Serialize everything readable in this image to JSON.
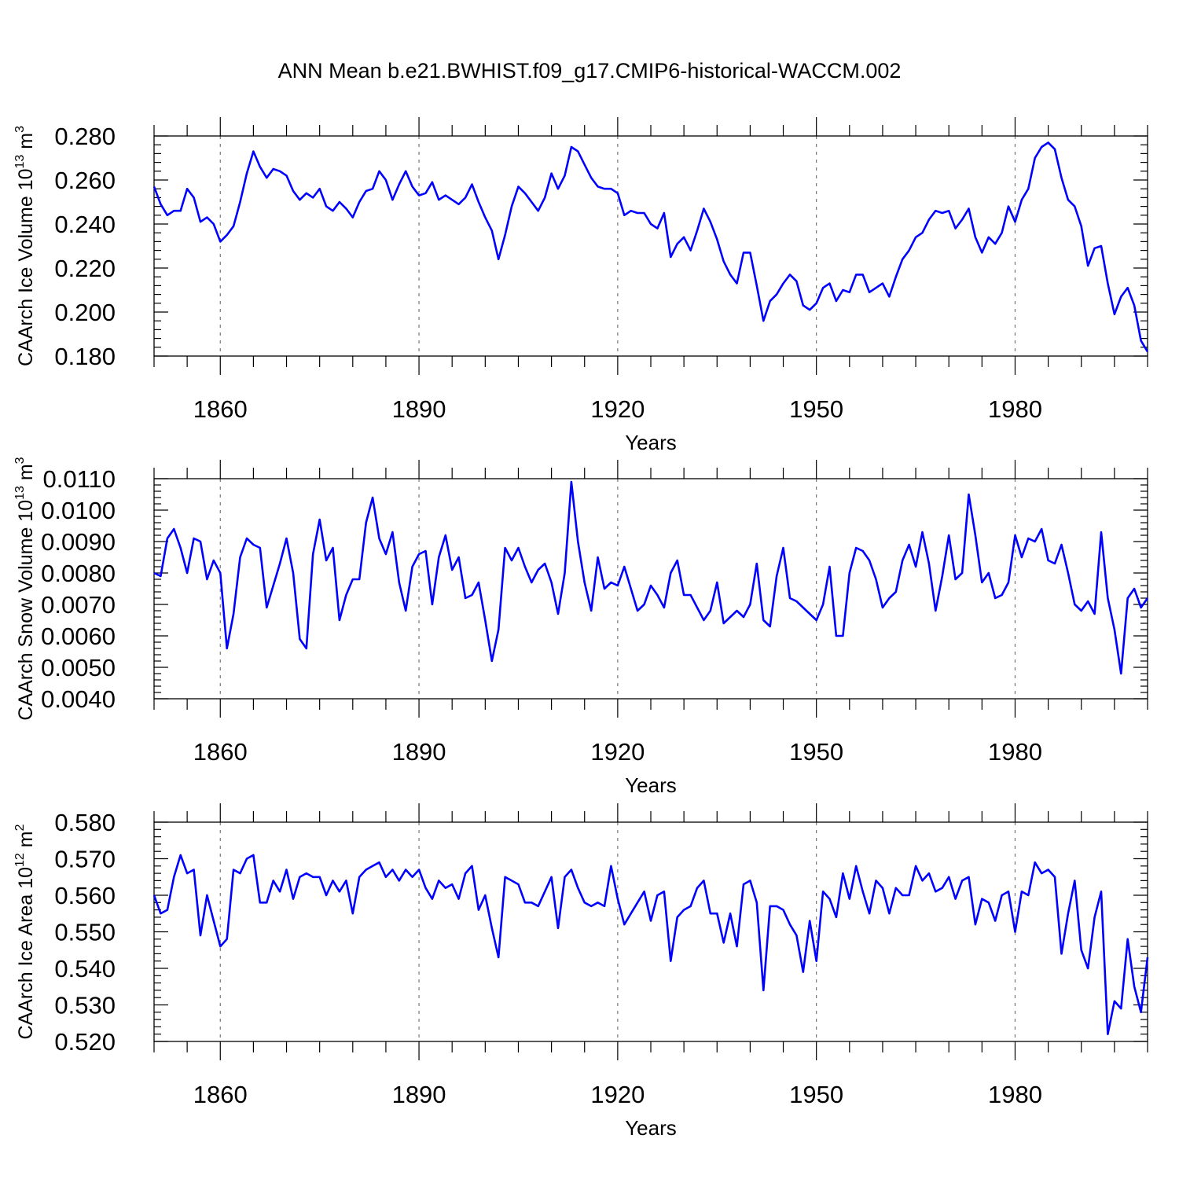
{
  "title": "ANN Mean b.e21.BWHIST.f09_g17.CMIP6-historical-WACCM.002",
  "colors": {
    "series": "#0000ff",
    "axis": "#000000",
    "grid": "#777777"
  },
  "chart_data": [
    {
      "type": "line",
      "id": "ice-volume",
      "ylabel": "CAArch Ice Volume 10",
      "ylabel_exp": "13",
      "ylabel_unit": "m",
      "ylabel_unit_exp": "3",
      "xlabel": "Years",
      "xlim": [
        1850,
        2000
      ],
      "ylim": [
        0.18,
        0.28
      ],
      "xticks": [
        1860,
        1890,
        1920,
        1950,
        1980
      ],
      "xtick_labels": [
        "1860",
        "1890",
        "1920",
        "1950",
        "1980"
      ],
      "yticks": [
        0.18,
        0.2,
        0.22,
        0.24,
        0.26,
        0.28
      ],
      "ytick_labels": [
        "0.180",
        "0.200",
        "0.220",
        "0.240",
        "0.260",
        "0.280"
      ],
      "x_start": 1850,
      "values": [
        0.257,
        0.249,
        0.244,
        0.246,
        0.246,
        0.256,
        0.252,
        0.241,
        0.243,
        0.24,
        0.232,
        0.235,
        0.239,
        0.25,
        0.263,
        0.273,
        0.266,
        0.261,
        0.265,
        0.264,
        0.262,
        0.255,
        0.251,
        0.254,
        0.252,
        0.256,
        0.248,
        0.246,
        0.25,
        0.247,
        0.243,
        0.25,
        0.255,
        0.256,
        0.264,
        0.26,
        0.251,
        0.258,
        0.264,
        0.257,
        0.253,
        0.254,
        0.259,
        0.251,
        0.253,
        0.251,
        0.249,
        0.252,
        0.258,
        0.25,
        0.243,
        0.237,
        0.224,
        0.235,
        0.248,
        0.257,
        0.254,
        0.25,
        0.246,
        0.252,
        0.263,
        0.256,
        0.262,
        0.275,
        0.273,
        0.267,
        0.261,
        0.257,
        0.256,
        0.256,
        0.254,
        0.244,
        0.246,
        0.245,
        0.245,
        0.24,
        0.238,
        0.245,
        0.225,
        0.231,
        0.234,
        0.228,
        0.237,
        0.247,
        0.241,
        0.233,
        0.223,
        0.217,
        0.213,
        0.227,
        0.227,
        0.212,
        0.196,
        0.205,
        0.208,
        0.213,
        0.217,
        0.214,
        0.203,
        0.201,
        0.204,
        0.211,
        0.213,
        0.205,
        0.21,
        0.209,
        0.217,
        0.217,
        0.209,
        0.211,
        0.213,
        0.207,
        0.216,
        0.224,
        0.228,
        0.234,
        0.236,
        0.242,
        0.246,
        0.245,
        0.246,
        0.238,
        0.242,
        0.247,
        0.234,
        0.227,
        0.234,
        0.231,
        0.236,
        0.248,
        0.241,
        0.251,
        0.256,
        0.27,
        0.275,
        0.277,
        0.274,
        0.261,
        0.251,
        0.248,
        0.239,
        0.221,
        0.229,
        0.23,
        0.213,
        0.199,
        0.207,
        0.211,
        0.203,
        0.187,
        0.182
      ]
    },
    {
      "type": "line",
      "id": "snow-volume",
      "ylabel": "CAArch Snow Volume 10",
      "ylabel_exp": "13",
      "ylabel_unit": "m",
      "ylabel_unit_exp": "3",
      "xlabel": "Years",
      "xlim": [
        1850,
        2000
      ],
      "ylim": [
        0.004,
        0.011
      ],
      "xticks": [
        1860,
        1890,
        1920,
        1950,
        1980
      ],
      "xtick_labels": [
        "1860",
        "1890",
        "1920",
        "1950",
        "1980"
      ],
      "yticks": [
        0.004,
        0.005,
        0.006,
        0.007,
        0.008,
        0.009,
        0.01,
        0.011
      ],
      "ytick_labels": [
        "0.0040",
        "0.0050",
        "0.0060",
        "0.0070",
        "0.0080",
        "0.0090",
        "0.0100",
        "0.0110"
      ],
      "x_start": 1850,
      "values": [
        0.008,
        0.0079,
        0.0091,
        0.0094,
        0.0088,
        0.008,
        0.0091,
        0.009,
        0.0078,
        0.0084,
        0.008,
        0.0056,
        0.0067,
        0.0085,
        0.0091,
        0.0089,
        0.0088,
        0.0069,
        0.0076,
        0.0083,
        0.0091,
        0.008,
        0.0059,
        0.0056,
        0.0086,
        0.0097,
        0.0084,
        0.0088,
        0.0065,
        0.0073,
        0.0078,
        0.0078,
        0.0096,
        0.0104,
        0.0091,
        0.0086,
        0.0093,
        0.0077,
        0.0068,
        0.0082,
        0.0086,
        0.0087,
        0.007,
        0.0085,
        0.0092,
        0.0081,
        0.0085,
        0.0072,
        0.0073,
        0.0077,
        0.0065,
        0.0052,
        0.0062,
        0.0088,
        0.0084,
        0.0088,
        0.0082,
        0.0077,
        0.0081,
        0.0083,
        0.0077,
        0.0067,
        0.008,
        0.0109,
        0.009,
        0.0077,
        0.0068,
        0.0085,
        0.0075,
        0.0077,
        0.0076,
        0.0082,
        0.0075,
        0.0068,
        0.007,
        0.0076,
        0.0073,
        0.0069,
        0.008,
        0.0084,
        0.0073,
        0.0073,
        0.0069,
        0.0065,
        0.0068,
        0.0077,
        0.0064,
        0.0066,
        0.0068,
        0.0066,
        0.007,
        0.0083,
        0.0065,
        0.0063,
        0.0079,
        0.0088,
        0.0072,
        0.0071,
        0.0069,
        0.0067,
        0.0065,
        0.007,
        0.0082,
        0.006,
        0.006,
        0.008,
        0.0088,
        0.0087,
        0.0084,
        0.0078,
        0.0069,
        0.0072,
        0.0074,
        0.0084,
        0.0089,
        0.0082,
        0.0093,
        0.0083,
        0.0068,
        0.0079,
        0.0092,
        0.0078,
        0.008,
        0.0105,
        0.0092,
        0.0077,
        0.008,
        0.0072,
        0.0073,
        0.0077,
        0.0092,
        0.0085,
        0.0091,
        0.009,
        0.0094,
        0.0084,
        0.0083,
        0.0089,
        0.008,
        0.007,
        0.0068,
        0.0071,
        0.0067,
        0.0093,
        0.0072,
        0.0062,
        0.0048,
        0.0072,
        0.0075,
        0.0069,
        0.0072
      ]
    },
    {
      "type": "line",
      "id": "ice-area",
      "ylabel": "CAArch Ice Area 10",
      "ylabel_exp": "12",
      "ylabel_unit": "m",
      "ylabel_unit_exp": "2",
      "xlabel": "Years",
      "xlim": [
        1850,
        2000
      ],
      "ylim": [
        0.52,
        0.58
      ],
      "xticks": [
        1860,
        1890,
        1920,
        1950,
        1980
      ],
      "xtick_labels": [
        "1860",
        "1890",
        "1920",
        "1950",
        "1980"
      ],
      "yticks": [
        0.52,
        0.53,
        0.54,
        0.55,
        0.56,
        0.57,
        0.58
      ],
      "ytick_labels": [
        "0.520",
        "0.530",
        "0.540",
        "0.550",
        "0.560",
        "0.570",
        "0.580"
      ],
      "x_start": 1850,
      "values": [
        0.56,
        0.555,
        0.556,
        0.565,
        0.571,
        0.566,
        0.567,
        0.549,
        0.56,
        0.553,
        0.546,
        0.548,
        0.567,
        0.566,
        0.57,
        0.571,
        0.558,
        0.558,
        0.564,
        0.561,
        0.567,
        0.559,
        0.565,
        0.566,
        0.565,
        0.565,
        0.56,
        0.564,
        0.561,
        0.564,
        0.555,
        0.565,
        0.567,
        0.568,
        0.569,
        0.565,
        0.567,
        0.564,
        0.567,
        0.565,
        0.567,
        0.562,
        0.559,
        0.564,
        0.562,
        0.563,
        0.559,
        0.566,
        0.568,
        0.556,
        0.56,
        0.551,
        0.543,
        0.565,
        0.564,
        0.563,
        0.558,
        0.558,
        0.557,
        0.561,
        0.565,
        0.551,
        0.565,
        0.567,
        0.562,
        0.558,
        0.557,
        0.558,
        0.557,
        0.568,
        0.559,
        0.552,
        0.555,
        0.558,
        0.561,
        0.553,
        0.56,
        0.561,
        0.542,
        0.554,
        0.556,
        0.557,
        0.562,
        0.564,
        0.555,
        0.555,
        0.547,
        0.555,
        0.546,
        0.563,
        0.564,
        0.558,
        0.534,
        0.557,
        0.557,
        0.556,
        0.552,
        0.549,
        0.539,
        0.553,
        0.542,
        0.561,
        0.559,
        0.554,
        0.566,
        0.559,
        0.568,
        0.561,
        0.555,
        0.564,
        0.562,
        0.555,
        0.562,
        0.56,
        0.56,
        0.568,
        0.564,
        0.566,
        0.561,
        0.562,
        0.565,
        0.559,
        0.564,
        0.565,
        0.552,
        0.559,
        0.558,
        0.553,
        0.56,
        0.561,
        0.55,
        0.561,
        0.56,
        0.569,
        0.566,
        0.567,
        0.565,
        0.544,
        0.555,
        0.564,
        0.545,
        0.54,
        0.554,
        0.561,
        0.522,
        0.531,
        0.529,
        0.548,
        0.535,
        0.528,
        0.543
      ]
    }
  ]
}
